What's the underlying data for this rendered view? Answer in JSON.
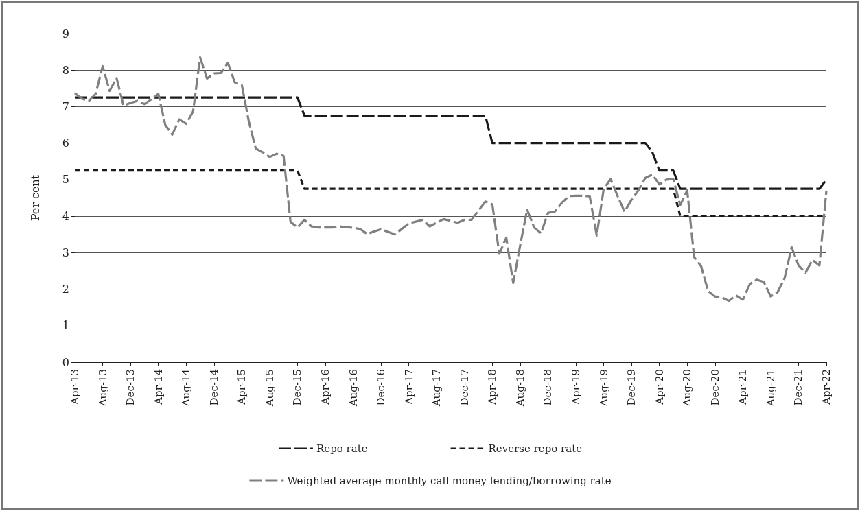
{
  "chart_data": {
    "type": "line",
    "ylabel": "Per cent",
    "categories": [
      "Apr-13",
      null,
      null,
      null,
      "Aug-13",
      null,
      null,
      null,
      "Dec-13",
      null,
      null,
      null,
      "Apr-14",
      null,
      null,
      null,
      "Aug-14",
      null,
      null,
      null,
      "Dec-14",
      null,
      null,
      null,
      "Apr-15",
      null,
      null,
      null,
      "Aug-15",
      null,
      null,
      null,
      "Dec-15",
      null,
      null,
      null,
      "Apr-16",
      null,
      null,
      null,
      "Aug-16",
      null,
      null,
      null,
      "Dec-16",
      null,
      null,
      null,
      "Apr-17",
      null,
      null,
      null,
      "Aug-17",
      null,
      null,
      null,
      "Dec-17",
      null,
      null,
      null,
      "Apr-18",
      null,
      null,
      null,
      "Aug-18",
      null,
      null,
      null,
      "Dec-18",
      null,
      null,
      null,
      "Apr-19",
      null,
      null,
      null,
      "Aug-19",
      null,
      null,
      null,
      "Dec-19",
      null,
      null,
      null,
      "Apr-20",
      null,
      null,
      null,
      "Aug-20",
      null,
      null,
      null,
      "Dec-20",
      null,
      null,
      null,
      "Apr-21",
      null,
      null,
      null,
      "Aug-21",
      null,
      null,
      null,
      "Dec-21",
      null,
      null,
      null,
      "Apr-22"
    ],
    "series": [
      {
        "name": "Repo rate",
        "color": "#1a1a1a",
        "line_style": "dashed",
        "values": [
          7.25,
          7.25,
          7.25,
          7.25,
          7.25,
          7.25,
          7.25,
          7.25,
          7.25,
          7.25,
          7.25,
          7.25,
          7.25,
          7.25,
          7.25,
          7.25,
          7.25,
          7.25,
          7.25,
          7.25,
          7.25,
          7.25,
          7.25,
          7.25,
          7.25,
          7.25,
          7.25,
          7.25,
          7.25,
          7.25,
          7.25,
          7.25,
          7.25,
          6.75,
          6.75,
          6.75,
          6.75,
          6.75,
          6.75,
          6.75,
          6.75,
          6.75,
          6.75,
          6.75,
          6.75,
          6.75,
          6.75,
          6.75,
          6.75,
          6.75,
          6.75,
          6.75,
          6.75,
          6.75,
          6.75,
          6.75,
          6.75,
          6.75,
          6.75,
          6.75,
          6.0,
          6.0,
          6.0,
          6.0,
          6.0,
          6.0,
          6.0,
          6.0,
          6.0,
          6.0,
          6.0,
          6.0,
          6.0,
          6.0,
          6.0,
          6.0,
          6.0,
          6.0,
          6.0,
          6.0,
          6.0,
          6.0,
          6.0,
          5.75,
          5.25,
          5.25,
          5.25,
          4.75,
          4.75,
          4.75,
          4.75,
          4.75,
          4.75,
          4.75,
          4.75,
          4.75,
          4.75,
          4.75,
          4.75,
          4.75,
          4.75,
          4.75,
          4.75,
          4.75,
          4.75,
          4.75,
          4.75,
          4.75,
          5.0
        ]
      },
      {
        "name": "Reverse repo rate",
        "color": "#1a1a1a",
        "line_style": "dotted",
        "values": [
          5.25,
          5.25,
          5.25,
          5.25,
          5.25,
          5.25,
          5.25,
          5.25,
          5.25,
          5.25,
          5.25,
          5.25,
          5.25,
          5.25,
          5.25,
          5.25,
          5.25,
          5.25,
          5.25,
          5.25,
          5.25,
          5.25,
          5.25,
          5.25,
          5.25,
          5.25,
          5.25,
          5.25,
          5.25,
          5.25,
          5.25,
          5.25,
          5.25,
          4.75,
          4.75,
          4.75,
          4.75,
          4.75,
          4.75,
          4.75,
          4.75,
          4.75,
          4.75,
          4.75,
          4.75,
          4.75,
          4.75,
          4.75,
          4.75,
          4.75,
          4.75,
          4.75,
          4.75,
          4.75,
          4.75,
          4.75,
          4.75,
          4.75,
          4.75,
          4.75,
          4.75,
          4.75,
          4.75,
          4.75,
          4.75,
          4.75,
          4.75,
          4.75,
          4.75,
          4.75,
          4.75,
          4.75,
          4.75,
          4.75,
          4.75,
          4.75,
          4.75,
          4.75,
          4.75,
          4.75,
          4.75,
          4.75,
          4.75,
          4.75,
          4.75,
          4.75,
          4.75,
          4.0,
          4.0,
          4.0,
          4.0,
          4.0,
          4.0,
          4.0,
          4.0,
          4.0,
          4.0,
          4.0,
          4.0,
          4.0,
          4.0,
          4.0,
          4.0,
          4.0,
          4.0,
          4.0,
          4.0,
          4.0,
          4.0
        ]
      },
      {
        "name": "Weighted average monthly call money lending/borrowing rate",
        "color": "#808080",
        "line_style": "dashed",
        "values": [
          7.37,
          7.22,
          7.15,
          7.35,
          8.11,
          7.43,
          7.78,
          7.03,
          7.1,
          7.16,
          7.07,
          7.2,
          7.35,
          6.5,
          6.23,
          6.65,
          6.53,
          6.87,
          8.35,
          7.77,
          7.91,
          7.92,
          8.2,
          7.66,
          7.59,
          6.6,
          5.85,
          5.75,
          5.62,
          5.71,
          5.65,
          3.84,
          3.69,
          3.9,
          3.72,
          3.69,
          3.69,
          3.69,
          3.72,
          3.7,
          3.68,
          3.65,
          3.51,
          3.58,
          3.64,
          3.57,
          3.5,
          3.65,
          3.8,
          3.85,
          3.9,
          3.72,
          3.82,
          3.92,
          3.87,
          3.82,
          3.9,
          3.9,
          4.15,
          4.4,
          4.32,
          2.97,
          3.41,
          2.17,
          3.2,
          4.18,
          3.69,
          3.53,
          4.09,
          4.13,
          4.37,
          4.55,
          4.56,
          4.56,
          4.54,
          3.47,
          4.74,
          5.02,
          4.55,
          4.12,
          4.45,
          4.71,
          5.05,
          5.14,
          4.87,
          5.0,
          5.02,
          4.3,
          4.71,
          2.88,
          2.63,
          1.95,
          1.8,
          1.77,
          1.68,
          1.83,
          1.71,
          2.14,
          2.26,
          2.2,
          1.8,
          1.92,
          2.3,
          3.15,
          2.65,
          2.45,
          2.8,
          2.65,
          4.7
        ]
      }
    ],
    "ylim": [
      0,
      9
    ],
    "yticks": [
      0,
      1,
      2,
      3,
      4,
      5,
      6,
      7,
      8,
      9
    ],
    "grid": "y",
    "legend": "bottom",
    "marker": "none"
  }
}
